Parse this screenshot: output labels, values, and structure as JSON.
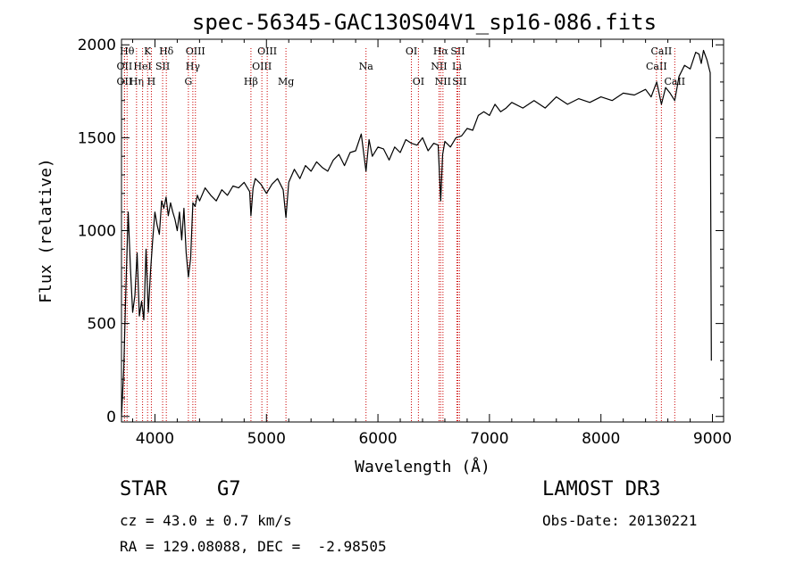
{
  "chart_data": {
    "type": "line",
    "title": "spec-56345-GAC130S04V1_sp16-086.fits",
    "xlabel": "Wavelength (Å)",
    "ylabel": "Flux (relative)",
    "xlim": [
      3700,
      9100
    ],
    "ylim": [
      -30,
      2030
    ],
    "xticks": [
      4000,
      5000,
      6000,
      7000,
      8000,
      9000
    ],
    "yticks": [
      0,
      500,
      1000,
      1500,
      2000
    ],
    "grid": false,
    "line_color": "#000000",
    "marker_color": "#cc0000",
    "series": [
      {
        "x": [
          3700,
          3720,
          3740,
          3760,
          3780,
          3800,
          3820,
          3840,
          3860,
          3880,
          3900,
          3920,
          3940,
          3960,
          3980,
          4000,
          4020,
          4040,
          4060,
          4080,
          4100,
          4120,
          4140,
          4160,
          4180,
          4200,
          4220,
          4240,
          4260,
          4280,
          4300,
          4320,
          4340,
          4360,
          4380,
          4400,
          4450,
          4500,
          4550,
          4600,
          4650,
          4700,
          4750,
          4800,
          4850,
          4861,
          4880,
          4900,
          4950,
          5000,
          5050,
          5100,
          5150,
          5175,
          5200,
          5250,
          5300,
          5350,
          5400,
          5450,
          5500,
          5550,
          5600,
          5650,
          5700,
          5750,
          5800,
          5850,
          5893,
          5920,
          5950,
          6000,
          6050,
          6100,
          6150,
          6200,
          6250,
          6300,
          6350,
          6400,
          6450,
          6500,
          6540,
          6563,
          6580,
          6600,
          6650,
          6700,
          6750,
          6800,
          6850,
          6900,
          6950,
          7000,
          7050,
          7100,
          7150,
          7200,
          7300,
          7400,
          7500,
          7600,
          7700,
          7800,
          7900,
          8000,
          8100,
          8200,
          8300,
          8400,
          8450,
          8500,
          8542,
          8580,
          8620,
          8662,
          8700,
          8750,
          8800,
          8850,
          8880,
          8900,
          8920,
          8950,
          8980,
          8990
        ],
        "y": [
          0,
          250,
          700,
          1100,
          800,
          560,
          650,
          880,
          540,
          620,
          520,
          900,
          560,
          780,
          950,
          1100,
          1030,
          980,
          1160,
          1120,
          1180,
          1080,
          1150,
          1100,
          1060,
          1000,
          1100,
          950,
          1120,
          880,
          750,
          850,
          1150,
          1130,
          1190,
          1160,
          1230,
          1190,
          1160,
          1220,
          1190,
          1240,
          1230,
          1260,
          1210,
          1080,
          1230,
          1280,
          1250,
          1200,
          1250,
          1280,
          1220,
          1070,
          1260,
          1330,
          1280,
          1350,
          1320,
          1370,
          1340,
          1320,
          1380,
          1410,
          1350,
          1420,
          1430,
          1520,
          1320,
          1490,
          1400,
          1450,
          1440,
          1380,
          1450,
          1420,
          1490,
          1470,
          1460,
          1500,
          1430,
          1470,
          1460,
          1160,
          1410,
          1480,
          1450,
          1500,
          1510,
          1550,
          1540,
          1620,
          1640,
          1620,
          1680,
          1640,
          1660,
          1690,
          1660,
          1700,
          1660,
          1720,
          1680,
          1710,
          1690,
          1720,
          1700,
          1740,
          1730,
          1760,
          1720,
          1800,
          1680,
          1770,
          1740,
          1700,
          1830,
          1890,
          1870,
          1960,
          1950,
          1900,
          1970,
          1920,
          1850,
          300
        ]
      }
    ],
    "line_markers": [
      {
        "x": 3750,
        "label": "Hθ",
        "row": 0
      },
      {
        "x": 3727,
        "label": "OII",
        "row": 1
      },
      {
        "x": 3727,
        "label": "OII",
        "row": 2
      },
      {
        "x": 3835,
        "label": "Hη",
        "row": 2
      },
      {
        "x": 3889,
        "label": "HeI",
        "row": 1
      },
      {
        "x": 3934,
        "label": "K",
        "row": 0
      },
      {
        "x": 3968,
        "label": "H",
        "row": 2
      },
      {
        "x": 4069,
        "label": "SII",
        "row": 1
      },
      {
        "x": 4102,
        "label": "Hδ",
        "row": 0
      },
      {
        "x": 4300,
        "label": "G",
        "row": 2
      },
      {
        "x": 4340,
        "label": "Hγ",
        "row": 1
      },
      {
        "x": 4363,
        "label": "OIII",
        "row": 0
      },
      {
        "x": 4861,
        "label": "Hβ",
        "row": 2
      },
      {
        "x": 4959,
        "label": "OIII",
        "row": 1
      },
      {
        "x": 5007,
        "label": "OIII",
        "row": 0
      },
      {
        "x": 5175,
        "label": "Mg",
        "row": 2
      },
      {
        "x": 5893,
        "label": "Na",
        "row": 1
      },
      {
        "x": 6300,
        "label": "OI",
        "row": 0
      },
      {
        "x": 6363,
        "label": "OI",
        "row": 2
      },
      {
        "x": 6548,
        "label": "NII",
        "row": 1
      },
      {
        "x": 6563,
        "label": "Hα",
        "row": 0
      },
      {
        "x": 6583,
        "label": "NII",
        "row": 2
      },
      {
        "x": 6708,
        "label": "Li",
        "row": 1
      },
      {
        "x": 6716,
        "label": "SII",
        "row": 0
      },
      {
        "x": 6731,
        "label": "SII",
        "row": 2
      },
      {
        "x": 8498,
        "label": "CaII",
        "row": 1
      },
      {
        "x": 8542,
        "label": "CaII",
        "row": 0
      },
      {
        "x": 8662,
        "label": "CaII",
        "row": 2
      }
    ]
  },
  "info": {
    "object_class": "STAR",
    "subclass": "G7",
    "survey": "LAMOST DR3",
    "redshift": "cz = 43.0 ± 0.7 km/s",
    "obs_date": "Obs-Date: 20130221",
    "coords": "RA = 129.08088, DEC =  -2.98505"
  }
}
